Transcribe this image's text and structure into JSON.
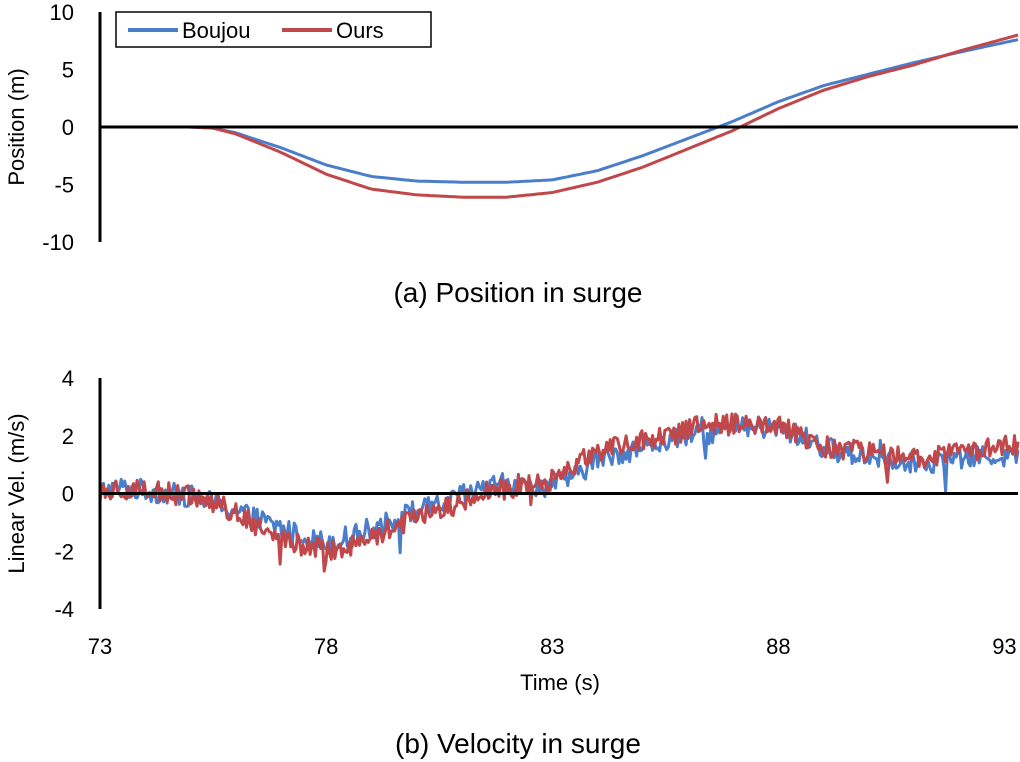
{
  "colors": {
    "boujou": "#4a7ecb",
    "ours": "#c0474a",
    "axis": "#000000"
  },
  "legend": {
    "items": [
      "Boujou",
      "Ours"
    ],
    "placement": "top-left"
  },
  "chart_data": [
    {
      "id": "position",
      "type": "line",
      "caption": "(a) Position in surge",
      "ylabel": "Position (m)",
      "xlim": [
        73,
        93.3
      ],
      "ylim": [
        -10,
        10
      ],
      "yticks": [
        10,
        5,
        0,
        -5,
        -10
      ],
      "x_axis_at_zero": true,
      "series": [
        {
          "name": "Boujou",
          "x": [
            73,
            74,
            75,
            75.5,
            76,
            77,
            78,
            79,
            80,
            81,
            82,
            83,
            84,
            85,
            86,
            87,
            88,
            89,
            90,
            91,
            92,
            93.3
          ],
          "y": [
            0,
            0,
            0,
            -0.1,
            -0.5,
            -1.8,
            -3.3,
            -4.3,
            -4.7,
            -4.8,
            -4.8,
            -4.6,
            -3.8,
            -2.5,
            -1.0,
            0.5,
            2.2,
            3.6,
            4.6,
            5.6,
            6.5,
            7.6
          ]
        },
        {
          "name": "Ours",
          "x": [
            73,
            74,
            75,
            75.5,
            76,
            77,
            78,
            79,
            80,
            81,
            82,
            83,
            84,
            85,
            86,
            87,
            88,
            89,
            90,
            91,
            92,
            93.3
          ],
          "y": [
            0,
            0,
            0,
            -0.1,
            -0.6,
            -2.2,
            -4.1,
            -5.4,
            -5.9,
            -6.1,
            -6.1,
            -5.7,
            -4.8,
            -3.5,
            -1.9,
            -0.3,
            1.6,
            3.2,
            4.4,
            5.4,
            6.6,
            8.0
          ]
        }
      ]
    },
    {
      "id": "velocity",
      "type": "line",
      "caption": "(b) Velocity in surge",
      "ylabel": "Linear Vel. (m/s)",
      "xlabel": "Time (s)",
      "xlim": [
        73,
        93.3
      ],
      "ylim": [
        -4,
        4
      ],
      "yticks": [
        4,
        2,
        0,
        -2,
        -4
      ],
      "xticks": [
        73,
        78,
        83,
        88,
        93
      ],
      "x_axis_at_zero": true,
      "series": [
        {
          "name": "Boujou",
          "x": [
            73,
            73.5,
            74,
            74.5,
            75,
            75.5,
            76,
            76.5,
            77,
            77.5,
            78,
            78.5,
            79,
            79.5,
            80,
            80.5,
            81,
            81.5,
            82,
            82.5,
            83,
            83.5,
            84,
            84.5,
            85,
            85.5,
            86,
            86.5,
            87,
            87.5,
            88,
            88.5,
            89,
            89.5,
            90,
            90.5,
            91,
            91.5,
            92,
            92.5,
            93,
            93.3
          ],
          "y": [
            0.1,
            0.2,
            0.1,
            0.0,
            -0.1,
            -0.3,
            -0.6,
            -0.9,
            -1.2,
            -1.5,
            -1.7,
            -1.5,
            -1.2,
            -0.9,
            -0.6,
            -0.4,
            -0.1,
            0.2,
            0.4,
            0.2,
            0.3,
            0.6,
            1.2,
            1.4,
            1.6,
            1.8,
            2.0,
            2.1,
            2.2,
            2.3,
            2.2,
            2.0,
            1.6,
            1.4,
            1.3,
            1.2,
            1.1,
            1.1,
            1.2,
            1.3,
            1.3,
            1.3
          ],
          "noise": 0.55
        },
        {
          "name": "Ours",
          "x": [
            73,
            73.5,
            74,
            74.5,
            75,
            75.5,
            76,
            76.5,
            77,
            77.5,
            78,
            78.5,
            79,
            79.5,
            80,
            80.5,
            81,
            81.5,
            82,
            82.5,
            83,
            83.5,
            84,
            84.5,
            85,
            85.5,
            86,
            86.5,
            87,
            87.5,
            88,
            88.5,
            89,
            89.5,
            90,
            90.5,
            91,
            91.5,
            92,
            92.5,
            93,
            93.3
          ],
          "y": [
            0.1,
            0.2,
            0.1,
            0.0,
            -0.1,
            -0.3,
            -0.7,
            -1.1,
            -1.5,
            -1.8,
            -2.0,
            -1.8,
            -1.5,
            -1.2,
            -0.9,
            -0.6,
            -0.3,
            0.0,
            0.2,
            0.3,
            0.5,
            1.0,
            1.4,
            1.6,
            1.8,
            2.0,
            2.2,
            2.4,
            2.4,
            2.3,
            2.3,
            2.0,
            1.6,
            1.5,
            1.4,
            1.3,
            1.2,
            1.3,
            1.4,
            1.5,
            1.6,
            1.7
          ],
          "noise": 0.55
        }
      ]
    }
  ]
}
